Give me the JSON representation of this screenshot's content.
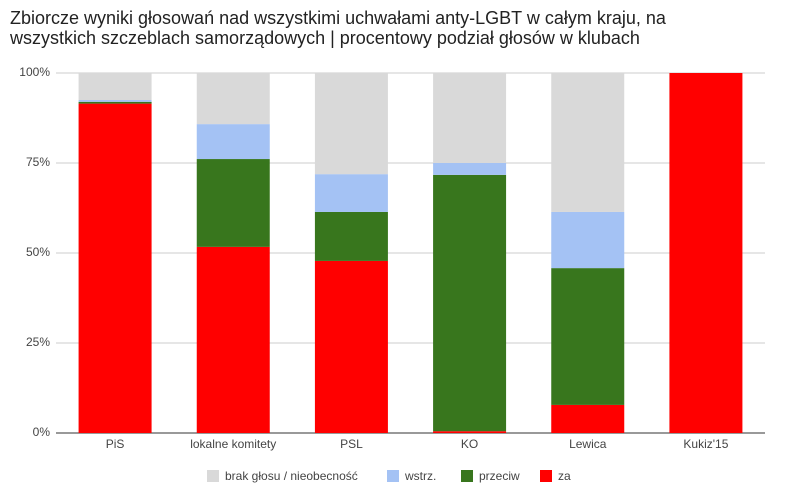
{
  "chart_data": {
    "type": "stacked-bar",
    "title": "Zbiorcze wyniki głosowań nad wszystkimi uchwałami anty-LGBT w całym kraju, na wszystkich szczeblach samorządowych | procentowy podział głosów w klubach",
    "categories": [
      "PiS",
      "lokalne komitety",
      "PSL",
      "KO",
      "Lewica",
      "Kukiz'15"
    ],
    "series": [
      {
        "name": "brak głosu / nieobecność",
        "color": "#d9d9d9",
        "values": [
          7.5,
          14.2,
          28.1,
          25,
          38.6,
          0
        ]
      },
      {
        "name": "wstrz.",
        "color": "#a4c2f4",
        "values": [
          0.5,
          9.7,
          10.5,
          3.3,
          15.6,
          0
        ]
      },
      {
        "name": "przeciw",
        "color": "#38761d",
        "values": [
          0.5,
          24.4,
          13.6,
          71.2,
          38,
          0
        ]
      },
      {
        "name": "za",
        "color": "#ff0000",
        "values": [
          91.5,
          51.7,
          47.8,
          0.5,
          7.8,
          100
        ]
      }
    ],
    "ylim": [
      0,
      100
    ],
    "yticks": [
      {
        "value": 0,
        "label": "0%"
      },
      {
        "value": 25,
        "label": "25%"
      },
      {
        "value": 50,
        "label": "50%"
      },
      {
        "value": 75,
        "label": "75%"
      },
      {
        "value": 100,
        "label": "100%"
      }
    ],
    "grid": true
  }
}
